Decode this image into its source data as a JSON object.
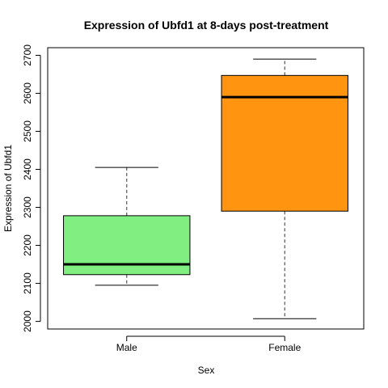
{
  "chart_data": {
    "type": "box",
    "title": "Expression of Ubfd1 at 8-days post-treatment",
    "xlabel": "Sex",
    "ylabel": "Expression of Ubfd1",
    "ylim": [
      1980,
      2720
    ],
    "y_ticks": [
      2000,
      2100,
      2200,
      2300,
      2400,
      2500,
      2600,
      2700
    ],
    "categories": [
      "Male",
      "Female"
    ],
    "boxes": [
      {
        "category": "Male",
        "min": 2095,
        "q1": 2123,
        "median": 2150,
        "q3": 2278,
        "max": 2405,
        "color": "#80ee80"
      },
      {
        "category": "Female",
        "min": 2007,
        "q1": 2290,
        "median": 2590,
        "q3": 2647,
        "max": 2690,
        "color": "#ff9410"
      }
    ]
  }
}
